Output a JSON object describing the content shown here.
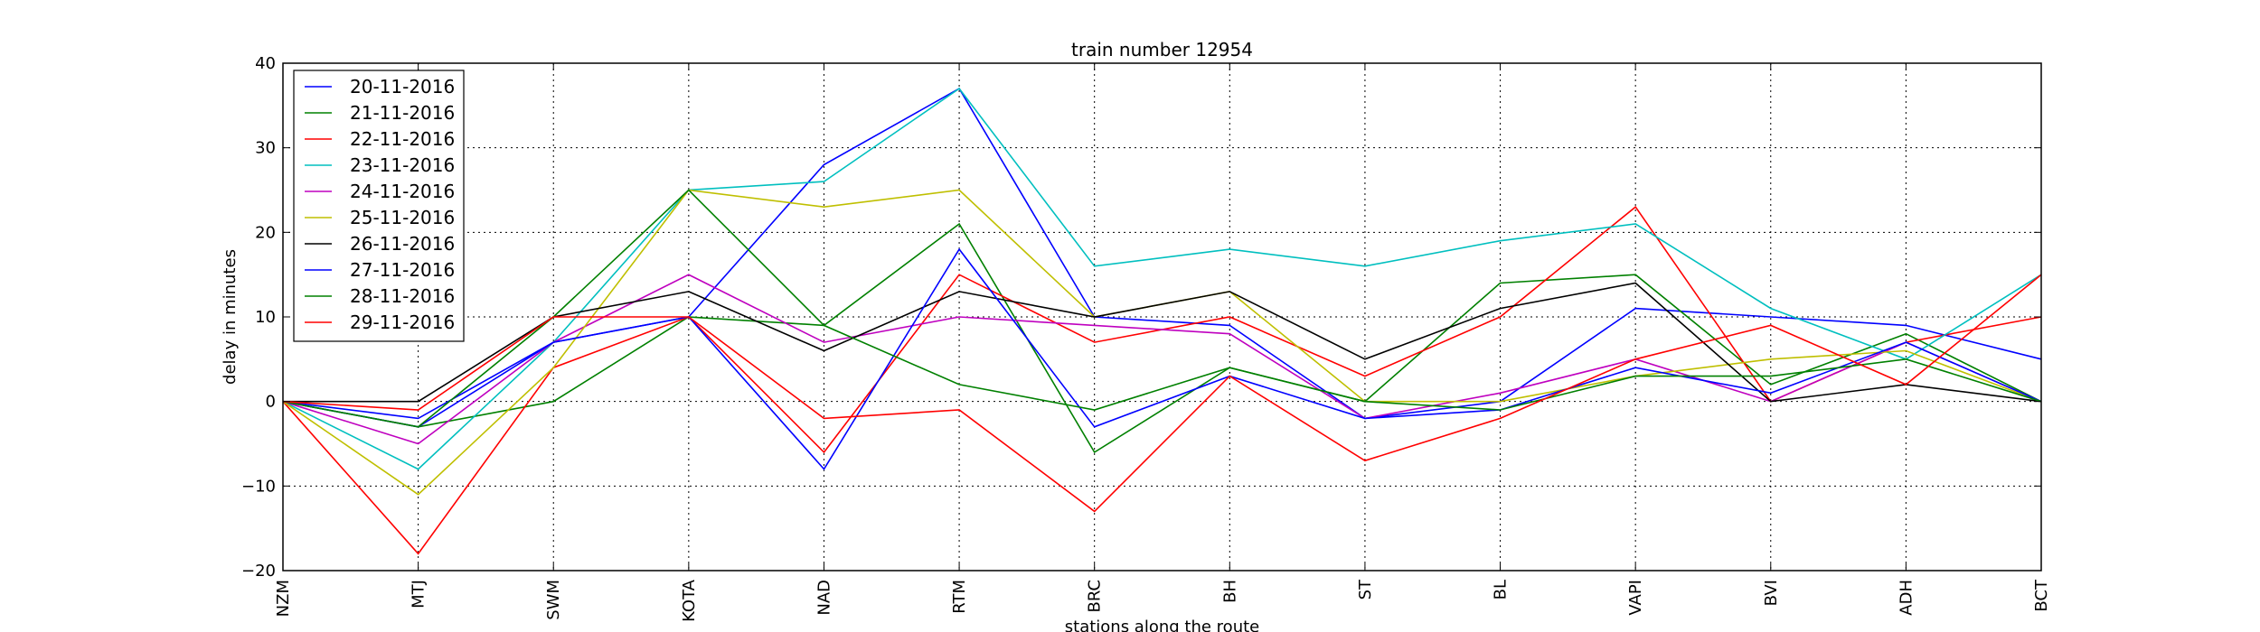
{
  "chart_data": {
    "type": "line",
    "title": "train number 12954",
    "xlabel": "stations along the route",
    "ylabel": "delay in minutes",
    "categories": [
      "NZM",
      "MTJ",
      "SWM",
      "KOTA",
      "NAD",
      "RTM",
      "BRC",
      "BH",
      "ST",
      "BL",
      "VAPI",
      "BVI",
      "ADH",
      "BCT"
    ],
    "ylim": [
      -20,
      40
    ],
    "yticks": [
      -20,
      -10,
      0,
      10,
      20,
      30,
      40
    ],
    "grid": true,
    "legend_position": "upper-left",
    "series": [
      {
        "name": "20-11-2016",
        "color": "#0000ff",
        "values": [
          0,
          -2,
          7,
          10,
          28,
          37,
          10,
          9,
          -2,
          0,
          11,
          10,
          9,
          5
        ]
      },
      {
        "name": "21-11-2016",
        "color": "#008000",
        "values": [
          0,
          -3,
          0,
          10,
          9,
          21,
          -6,
          4,
          0,
          14,
          15,
          2,
          8,
          0
        ]
      },
      {
        "name": "22-11-2016",
        "color": "#ff0000",
        "values": [
          0,
          -18,
          4,
          10,
          -6,
          15,
          7,
          10,
          3,
          10,
          23,
          0,
          7,
          10
        ]
      },
      {
        "name": "23-11-2016",
        "color": "#00bfbf",
        "values": [
          0,
          -8,
          7,
          25,
          26,
          37,
          16,
          18,
          16,
          19,
          21,
          11,
          5,
          15
        ]
      },
      {
        "name": "24-11-2016",
        "color": "#bf00bf",
        "values": [
          0,
          -5,
          7,
          15,
          7,
          10,
          9,
          8,
          -2,
          1,
          5,
          0,
          7,
          0
        ]
      },
      {
        "name": "25-11-2016",
        "color": "#bfbf00",
        "values": [
          0,
          -11,
          4,
          25,
          23,
          25,
          10,
          13,
          0,
          0,
          3,
          5,
          6,
          0
        ]
      },
      {
        "name": "26-11-2016",
        "color": "#000000",
        "values": [
          0,
          0,
          10,
          13,
          6,
          13,
          10,
          13,
          5,
          11,
          14,
          0,
          2,
          0
        ]
      },
      {
        "name": "27-11-2016",
        "color": "#0000ff",
        "values": [
          0,
          -3,
          7,
          10,
          -8,
          18,
          -3,
          3,
          -2,
          -1,
          4,
          1,
          7,
          0
        ]
      },
      {
        "name": "28-11-2016",
        "color": "#008000",
        "values": [
          0,
          -3,
          10,
          25,
          9,
          2,
          -1,
          4,
          0,
          -1,
          3,
          3,
          5,
          0
        ]
      },
      {
        "name": "29-11-2016",
        "color": "#ff0000",
        "values": [
          0,
          -1,
          10,
          10,
          -2,
          -1,
          -13,
          3,
          -7,
          -2,
          5,
          9,
          2,
          15
        ]
      }
    ]
  }
}
